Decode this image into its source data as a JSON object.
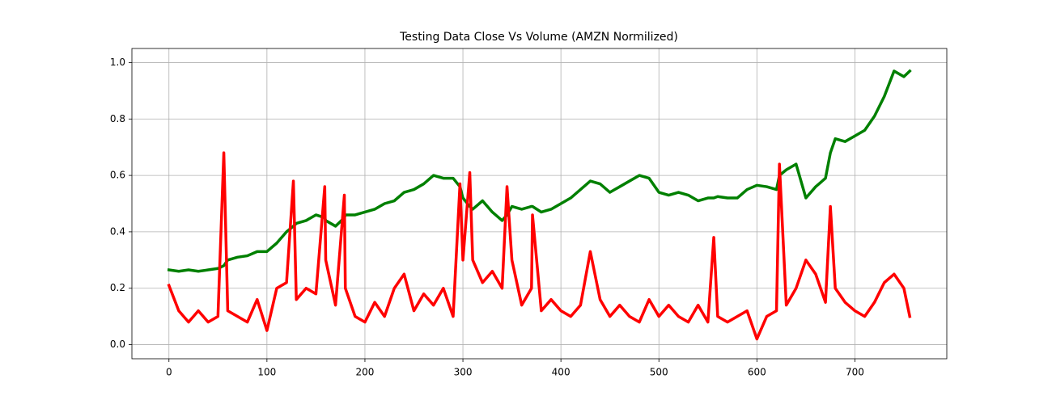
{
  "chart_data": {
    "type": "line",
    "title": "Testing Data Close Vs Volume (AMZN Normilized)",
    "x": [
      0,
      10,
      20,
      30,
      40,
      50,
      56,
      60,
      70,
      80,
      90,
      100,
      110,
      120,
      127,
      130,
      140,
      150,
      159,
      160,
      170,
      179,
      180,
      190,
      200,
      210,
      220,
      230,
      240,
      250,
      260,
      270,
      280,
      290,
      297,
      300,
      307,
      310,
      320,
      330,
      340,
      345,
      350,
      360,
      370,
      371,
      380,
      390,
      400,
      410,
      420,
      430,
      440,
      450,
      460,
      470,
      480,
      490,
      500,
      510,
      520,
      530,
      540,
      550,
      556,
      560,
      570,
      580,
      590,
      600,
      610,
      620,
      623,
      630,
      640,
      650,
      660,
      670,
      675,
      680,
      690,
      700,
      710,
      720,
      730,
      740,
      750,
      756
    ],
    "series": [
      {
        "color": "#008000",
        "values": [
          0.265,
          0.26,
          0.265,
          0.26,
          0.265,
          0.27,
          0.28,
          0.3,
          0.31,
          0.315,
          0.33,
          0.33,
          0.36,
          0.4,
          0.42,
          0.43,
          0.44,
          0.46,
          0.45,
          0.44,
          0.42,
          0.45,
          0.46,
          0.46,
          0.47,
          0.48,
          0.5,
          0.51,
          0.54,
          0.55,
          0.57,
          0.6,
          0.59,
          0.59,
          0.56,
          0.52,
          0.49,
          0.48,
          0.51,
          0.47,
          0.44,
          0.46,
          0.49,
          0.48,
          0.49,
          0.49,
          0.47,
          0.48,
          0.5,
          0.52,
          0.55,
          0.58,
          0.57,
          0.54,
          0.56,
          0.58,
          0.6,
          0.59,
          0.54,
          0.53,
          0.54,
          0.53,
          0.51,
          0.52,
          0.52,
          0.525,
          0.52,
          0.52,
          0.55,
          0.565,
          0.56,
          0.55,
          0.6,
          0.62,
          0.64,
          0.52,
          0.56,
          0.59,
          0.68,
          0.73,
          0.72,
          0.74,
          0.76,
          0.81,
          0.88,
          0.97,
          0.95,
          0.97
        ]
      },
      {
        "color": "#ff0000",
        "values": [
          0.21,
          0.12,
          0.08,
          0.12,
          0.08,
          0.1,
          0.68,
          0.12,
          0.1,
          0.08,
          0.16,
          0.05,
          0.2,
          0.22,
          0.58,
          0.16,
          0.2,
          0.18,
          0.56,
          0.3,
          0.14,
          0.53,
          0.2,
          0.1,
          0.08,
          0.15,
          0.1,
          0.2,
          0.25,
          0.12,
          0.18,
          0.14,
          0.2,
          0.1,
          0.57,
          0.3,
          0.61,
          0.3,
          0.22,
          0.26,
          0.2,
          0.56,
          0.3,
          0.14,
          0.2,
          0.46,
          0.12,
          0.16,
          0.12,
          0.1,
          0.14,
          0.33,
          0.16,
          0.1,
          0.14,
          0.1,
          0.08,
          0.16,
          0.1,
          0.14,
          0.1,
          0.08,
          0.14,
          0.08,
          0.38,
          0.1,
          0.08,
          0.1,
          0.12,
          0.02,
          0.1,
          0.12,
          0.64,
          0.14,
          0.2,
          0.3,
          0.25,
          0.15,
          0.49,
          0.2,
          0.15,
          0.12,
          0.1,
          0.15,
          0.22,
          0.25,
          0.2,
          0.1
        ]
      }
    ],
    "xlim": [
      -37.8,
      793.8
    ],
    "xticks": [
      0,
      100,
      200,
      300,
      400,
      500,
      600,
      700
    ],
    "ylim": [
      -0.05,
      1.05
    ],
    "yticks": [
      {
        "value": 0,
        "label": "0.0"
      },
      {
        "value": 0.2,
        "label": "0.2"
      },
      {
        "value": 0.4,
        "label": "0.4"
      },
      {
        "value": 0.6,
        "label": "0.6"
      },
      {
        "value": 0.8,
        "label": "0.8"
      },
      {
        "value": 1.0,
        "label": "1.0"
      }
    ],
    "grid": true
  }
}
